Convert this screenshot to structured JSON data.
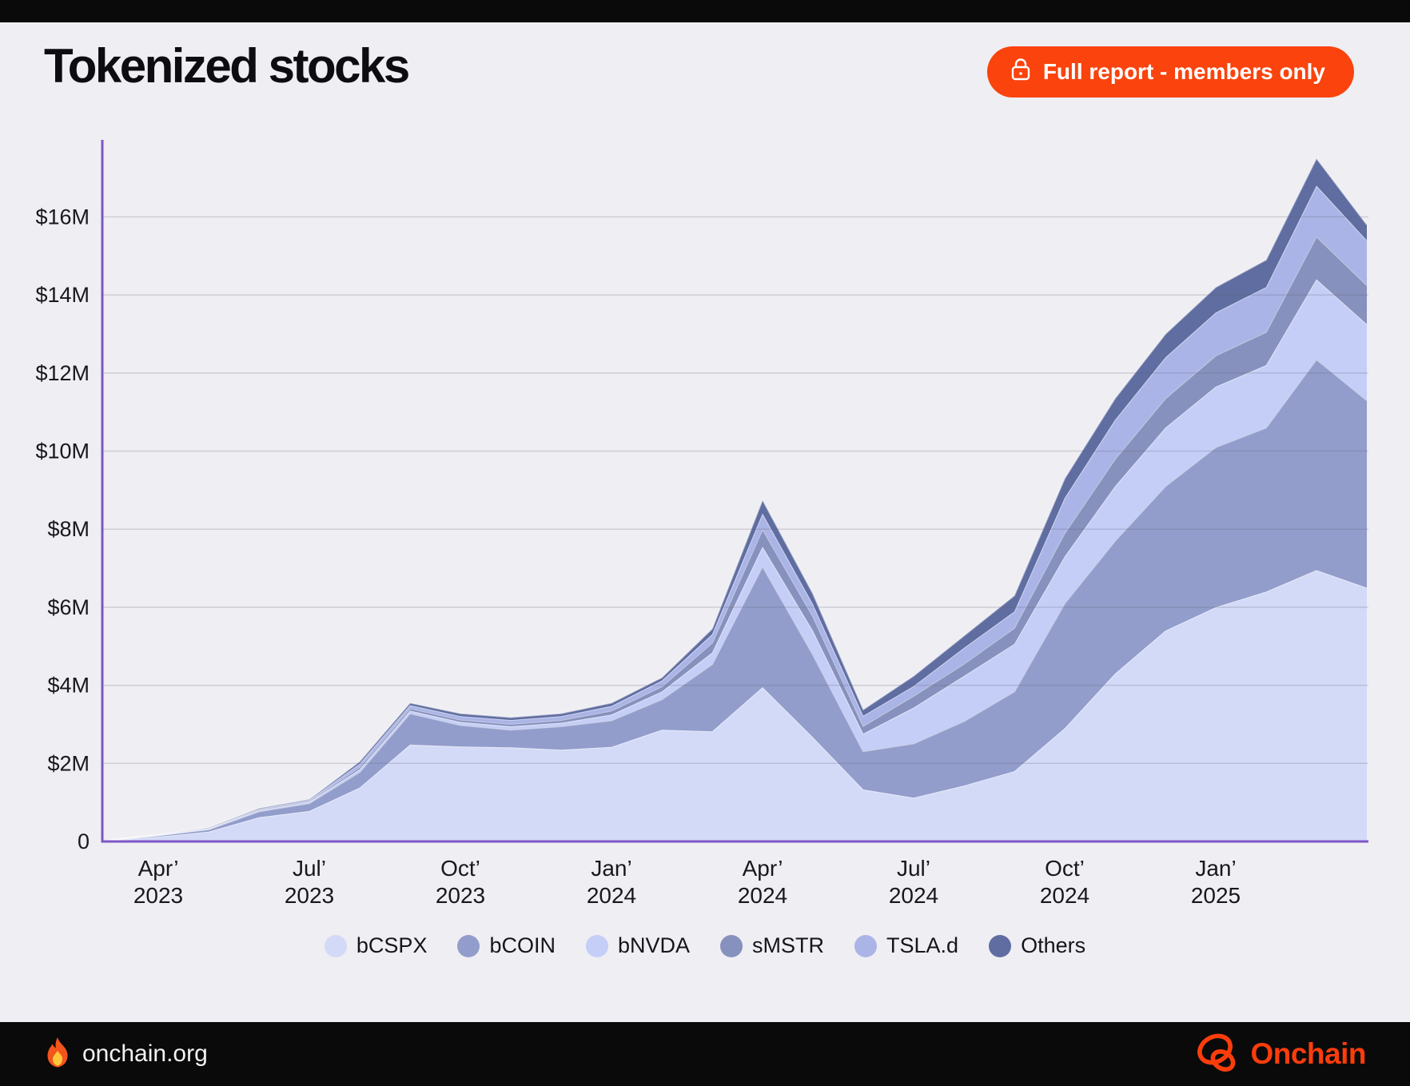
{
  "page": {
    "title": "Tokenized stocks"
  },
  "header": {
    "cta_label": "Full report - members only",
    "cta_color": "#FA430D",
    "cta_icon": "lock-icon"
  },
  "footer": {
    "fire_icon": "flame-icon",
    "site": "onchain.org",
    "brand": "Onchain",
    "brand_color": "#FB3D0B"
  },
  "chart_data": {
    "type": "area",
    "stacked": true,
    "title": "Tokenized stocks",
    "unit": "USD (millions)",
    "grid": true,
    "legend_position": "bottom",
    "ylim": [
      0,
      17.6
    ],
    "axis_color": "#7E57C5",
    "grid_color": "rgba(92,92,116,0.22)",
    "background": "#EFEEF3",
    "x_months": [
      "Mar 2023",
      "Apr 2023",
      "May 2023",
      "Jun 2023",
      "Jul 2023",
      "Aug 2023",
      "Sep 2023",
      "Oct 2023",
      "Nov 2023",
      "Dec 2023",
      "Jan 2024",
      "Feb 2024",
      "Mar 2024",
      "Apr 2024",
      "May 2024",
      "Jun 2024",
      "Jul 2024",
      "Aug 2024",
      "Sep 2024",
      "Oct 2024",
      "Nov 2024",
      "Dec 2024",
      "Jan 2025",
      "Feb 2025",
      "Mar 2025",
      "Apr 2025"
    ],
    "x_tick_labels": [
      {
        "top": "Apr’",
        "bottom": "2023",
        "index": 1
      },
      {
        "top": "Jul’",
        "bottom": "2023",
        "index": 4
      },
      {
        "top": "Oct’",
        "bottom": "2023",
        "index": 7
      },
      {
        "top": "Jan’",
        "bottom": "2024",
        "index": 10
      },
      {
        "top": "Apr’",
        "bottom": "2024",
        "index": 13
      },
      {
        "top": "Jul’",
        "bottom": "2024",
        "index": 16
      },
      {
        "top": "Oct’",
        "bottom": "2024",
        "index": 19
      },
      {
        "top": "Jan’",
        "bottom": "2025",
        "index": 22
      }
    ],
    "y_ticks": [
      {
        "label": "0",
        "value": 0
      },
      {
        "label": "$2M",
        "value": 2
      },
      {
        "label": "$4M",
        "value": 4
      },
      {
        "label": "$6M",
        "value": 6
      },
      {
        "label": "$8M",
        "value": 8
      },
      {
        "label": "$10M",
        "value": 10
      },
      {
        "label": "$12M",
        "value": 12
      },
      {
        "label": "$14M",
        "value": 14
      },
      {
        "label": "$16M",
        "value": 16
      }
    ],
    "series": [
      {
        "name": "bCSPX",
        "color": "#D3DAF7",
        "values": [
          0.02,
          0.12,
          0.25,
          0.62,
          0.78,
          1.38,
          2.48,
          2.43,
          2.41,
          2.35,
          2.42,
          2.86,
          2.82,
          3.95,
          2.67,
          1.33,
          1.12,
          1.43,
          1.8,
          2.9,
          4.3,
          5.4,
          6.0,
          6.4,
          6.95,
          6.5
        ]
      },
      {
        "name": "bCOIN",
        "color": "#939DCB",
        "values": [
          0.01,
          0.03,
          0.06,
          0.15,
          0.2,
          0.4,
          0.8,
          0.55,
          0.45,
          0.6,
          0.68,
          0.78,
          1.72,
          3.1,
          2.12,
          0.98,
          1.39,
          1.65,
          2.04,
          3.2,
          3.4,
          3.7,
          4.1,
          4.2,
          5.4,
          4.8
        ]
      },
      {
        "name": "bNVDA",
        "color": "#C5CEF6",
        "values": [
          0.0,
          0.01,
          0.01,
          0.02,
          0.03,
          0.07,
          0.07,
          0.08,
          0.09,
          0.09,
          0.15,
          0.2,
          0.3,
          0.5,
          0.61,
          0.45,
          0.92,
          1.16,
          1.22,
          1.2,
          1.4,
          1.5,
          1.55,
          1.6,
          2.05,
          1.95
        ]
      },
      {
        "name": "sMSTR",
        "color": "#8791BD",
        "values": [
          0.0,
          0.0,
          0.01,
          0.02,
          0.02,
          0.06,
          0.06,
          0.06,
          0.06,
          0.07,
          0.1,
          0.13,
          0.25,
          0.45,
          0.37,
          0.2,
          0.3,
          0.31,
          0.41,
          0.6,
          0.7,
          0.75,
          0.8,
          0.85,
          1.1,
          1.0
        ]
      },
      {
        "name": "TSLA.d",
        "color": "#AAB4E6",
        "values": [
          0.0,
          0.01,
          0.01,
          0.02,
          0.03,
          0.08,
          0.08,
          0.09,
          0.1,
          0.1,
          0.12,
          0.15,
          0.22,
          0.4,
          0.31,
          0.26,
          0.25,
          0.41,
          0.42,
          0.9,
          1.0,
          1.05,
          1.1,
          1.15,
          1.3,
          1.15
        ]
      },
      {
        "name": "Others",
        "color": "#5F6DA0",
        "values": [
          0.0,
          0.0,
          0.01,
          0.02,
          0.02,
          0.06,
          0.06,
          0.07,
          0.07,
          0.07,
          0.08,
          0.08,
          0.14,
          0.35,
          0.27,
          0.16,
          0.26,
          0.31,
          0.41,
          0.5,
          0.55,
          0.6,
          0.65,
          0.7,
          0.7,
          0.4
        ]
      }
    ],
    "legend": [
      "bCSPX",
      "bCOIN",
      "bNVDA",
      "sMSTR",
      "TSLA.d",
      "Others"
    ]
  }
}
